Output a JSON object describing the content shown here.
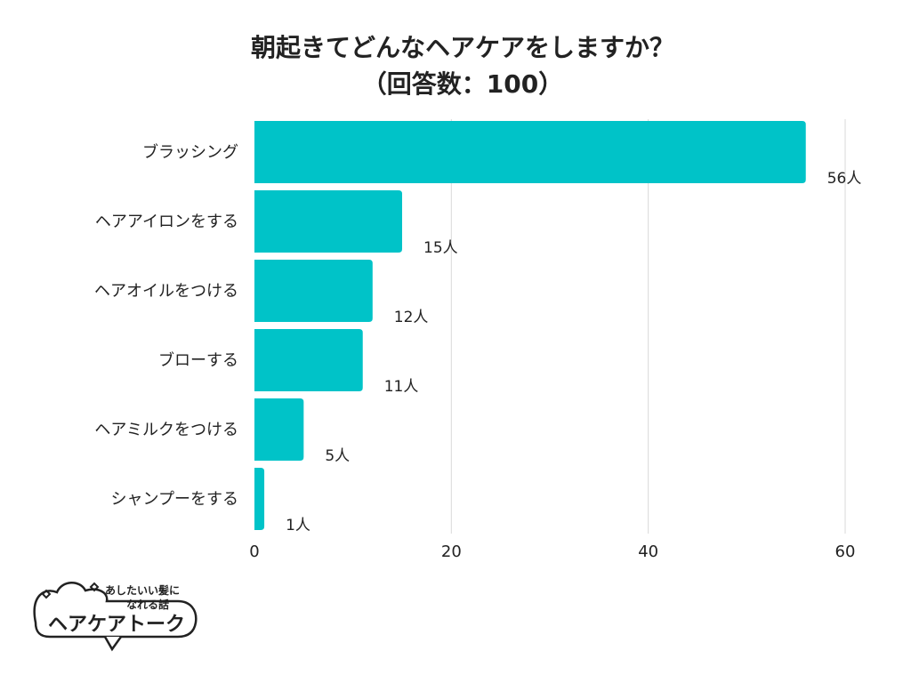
{
  "chart_data": {
    "type": "bar",
    "orientation": "horizontal",
    "title": "朝起きてどんなヘアケアをしますか？",
    "subtitle": "（回答数：100）",
    "categories": [
      "ブラッシング",
      "ヘアアイロンをする",
      "ヘアオイルをつける",
      "ブローする",
      "ヘアミルクをつける",
      "シャンプーをする"
    ],
    "values": [
      56,
      15,
      12,
      11,
      5,
      1
    ],
    "value_labels": [
      "56人",
      "15人",
      "12人",
      "11人",
      "5人",
      "1人"
    ],
    "xlim": [
      0,
      60
    ],
    "xticks": [
      0,
      20,
      40,
      60
    ],
    "tick_labels": [
      "0",
      "20",
      "40",
      "60"
    ],
    "xlabel": "",
    "ylabel": "",
    "grid": true,
    "bar_color": "#00c3c8",
    "grid_color": "#d9d9d9"
  },
  "logo": {
    "line1": "あしたいい髪に",
    "line2": "なれる話",
    "name": "ヘアケアトーク"
  }
}
